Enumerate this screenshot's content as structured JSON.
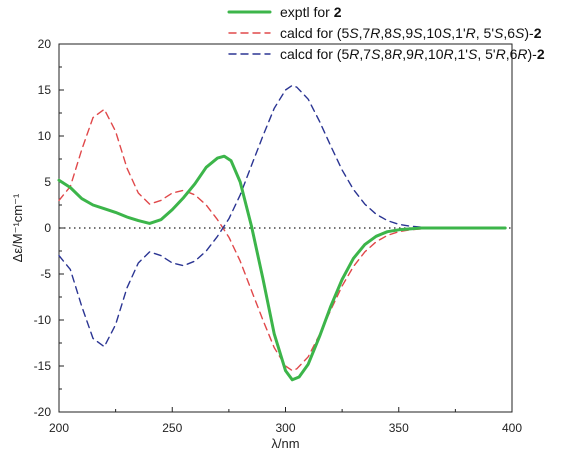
{
  "chart_data": {
    "type": "line",
    "xlabel": "λ/nm",
    "ylabel": "Δε/M⁻¹cm⁻¹",
    "xlim": [
      200,
      400
    ],
    "ylim": [
      -20,
      20
    ],
    "x_ticks": [
      200,
      250,
      300,
      350,
      400
    ],
    "y_ticks": [
      -20,
      -15,
      -10,
      -5,
      0,
      5,
      10,
      15,
      20
    ],
    "grid": false,
    "zero_line": "dotted",
    "legend_position": "top-right",
    "series": [
      {
        "name": "exptl for 2",
        "legend_parts": [
          {
            "t": "exptl for "
          },
          {
            "t": "2",
            "b": true
          }
        ],
        "color": "#3cb54a",
        "style": "solid",
        "x": [
          200,
          205,
          210,
          215,
          220,
          225,
          230,
          235,
          240,
          245,
          250,
          255,
          260,
          265,
          270,
          273,
          276,
          280,
          285,
          290,
          295,
          300,
          303,
          306,
          310,
          315,
          320,
          325,
          330,
          335,
          340,
          345,
          350,
          355,
          360,
          370,
          380,
          390,
          397
        ],
        "y": [
          5.2,
          4.4,
          3.2,
          2.5,
          2.1,
          1.7,
          1.2,
          0.8,
          0.5,
          0.9,
          2.0,
          3.3,
          4.8,
          6.6,
          7.6,
          7.8,
          7.3,
          5.0,
          0.2,
          -5.5,
          -11.5,
          -15.5,
          -16.5,
          -16.2,
          -14.8,
          -11.8,
          -8.5,
          -5.6,
          -3.3,
          -1.8,
          -0.9,
          -0.4,
          -0.2,
          -0.1,
          0,
          0,
          0,
          0,
          0
        ]
      },
      {
        "name": "calcd for (5S,7R,8S,9S,10S,1'R, 5'S,6S)-2",
        "legend_parts": [
          {
            "t": "calcd for (5"
          },
          {
            "t": "S",
            "i": true
          },
          {
            "t": ",7"
          },
          {
            "t": "R",
            "i": true
          },
          {
            "t": ",8"
          },
          {
            "t": "S",
            "i": true
          },
          {
            "t": ",9"
          },
          {
            "t": "S",
            "i": true
          },
          {
            "t": ",10"
          },
          {
            "t": "S",
            "i": true
          },
          {
            "t": ",1'"
          },
          {
            "t": "R",
            "i": true
          },
          {
            "t": ", 5'"
          },
          {
            "t": "S",
            "i": true
          },
          {
            "t": ",6"
          },
          {
            "t": "S",
            "i": true
          },
          {
            "t": ")-"
          },
          {
            "t": "2",
            "b": true
          }
        ],
        "color": "#e0484a",
        "style": "dashed",
        "x": [
          200,
          205,
          210,
          215,
          220,
          225,
          230,
          235,
          240,
          245,
          250,
          255,
          260,
          265,
          270,
          275,
          280,
          285,
          290,
          295,
          300,
          303,
          305,
          310,
          315,
          320,
          325,
          330,
          335,
          340,
          345,
          350,
          355,
          360,
          370,
          380,
          390,
          397
        ],
        "y": [
          3.0,
          4.5,
          8.5,
          12.0,
          12.9,
          10.5,
          6.5,
          3.8,
          2.6,
          3.0,
          3.8,
          4.1,
          3.6,
          2.5,
          0.9,
          -1.0,
          -3.6,
          -6.8,
          -10.0,
          -13.0,
          -15.0,
          -15.5,
          -15.3,
          -14.0,
          -11.6,
          -8.9,
          -6.3,
          -4.2,
          -2.6,
          -1.5,
          -0.8,
          -0.4,
          -0.2,
          -0.1,
          0,
          0,
          0,
          0
        ]
      },
      {
        "name": "calcd for (5R,7S,8R,9R,10R,1'S, 5'R,6R)-2",
        "legend_parts": [
          {
            "t": "calcd for (5"
          },
          {
            "t": "R",
            "i": true
          },
          {
            "t": ",7"
          },
          {
            "t": "S",
            "i": true
          },
          {
            "t": ",8"
          },
          {
            "t": "R",
            "i": true
          },
          {
            "t": ",9"
          },
          {
            "t": "R",
            "i": true
          },
          {
            "t": ",10"
          },
          {
            "t": "R",
            "i": true
          },
          {
            "t": ",1'"
          },
          {
            "t": "S",
            "i": true
          },
          {
            "t": ", 5'"
          },
          {
            "t": "R",
            "i": true
          },
          {
            "t": ",6"
          },
          {
            "t": "R",
            "i": true
          },
          {
            "t": ")-"
          },
          {
            "t": "2",
            "b": true
          }
        ],
        "color": "#2b3593",
        "style": "dashed",
        "x": [
          200,
          205,
          210,
          215,
          220,
          225,
          230,
          235,
          240,
          245,
          250,
          255,
          260,
          265,
          270,
          275,
          280,
          285,
          290,
          295,
          300,
          303,
          305,
          310,
          315,
          320,
          325,
          330,
          335,
          340,
          345,
          350,
          355,
          360,
          370,
          380,
          390,
          397
        ],
        "y": [
          -3.0,
          -4.5,
          -8.5,
          -12.0,
          -12.9,
          -10.5,
          -6.5,
          -3.8,
          -2.6,
          -3.0,
          -3.8,
          -4.1,
          -3.6,
          -2.5,
          -0.9,
          1.0,
          3.6,
          6.8,
          10.0,
          13.0,
          15.0,
          15.5,
          15.3,
          14.0,
          11.6,
          8.9,
          6.3,
          4.2,
          2.6,
          1.5,
          0.8,
          0.4,
          0.2,
          0.1,
          0,
          0,
          0,
          0
        ]
      }
    ]
  }
}
